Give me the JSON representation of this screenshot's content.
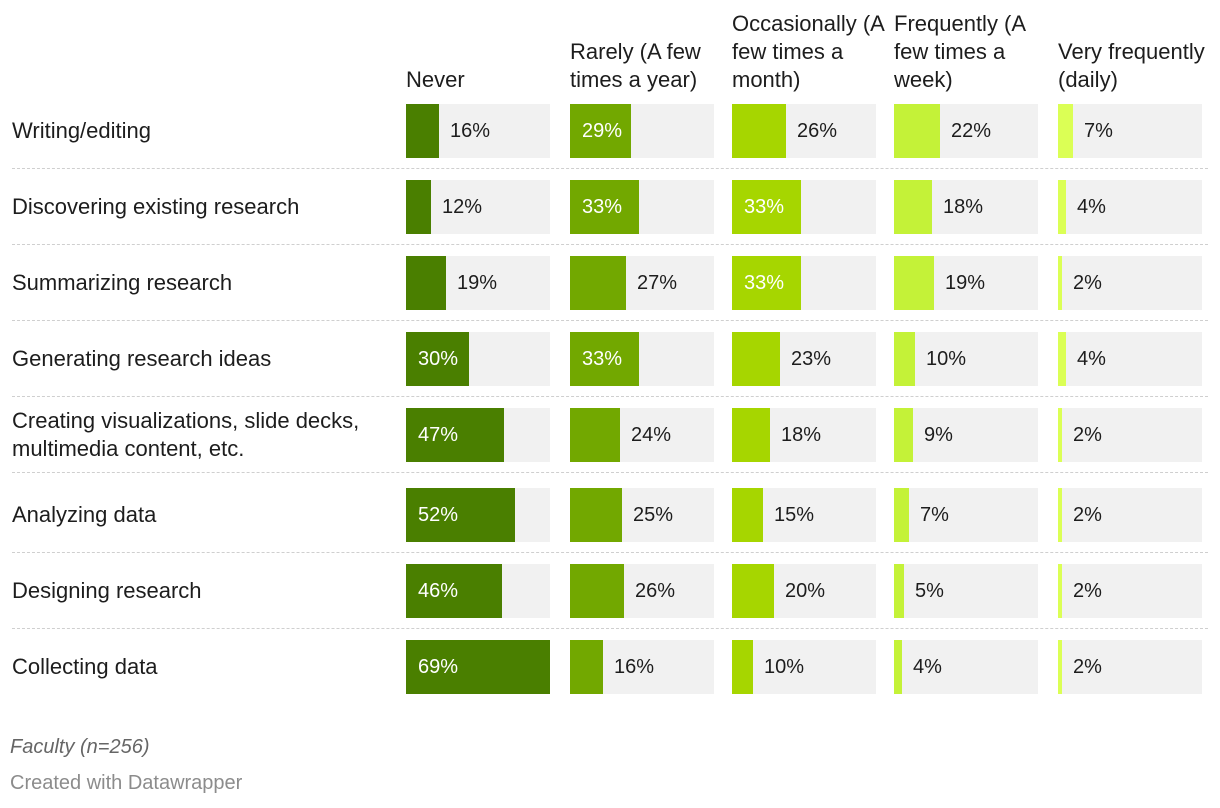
{
  "chart_data": {
    "type": "bar",
    "columns": [
      {
        "name": "Never",
        "color": "#4a7f00"
      },
      {
        "name": "Rarely (A few times a year)",
        "color": "#72a800"
      },
      {
        "name": "Occasionally (A few times a month)",
        "color": "#a6d600"
      },
      {
        "name": "Frequently (A few times a week)",
        "color": "#c4f238"
      },
      {
        "name": "Very frequently (daily)",
        "color": "#dbff55"
      }
    ],
    "rows": [
      {
        "label": "Writing/editing",
        "values": [
          16,
          29,
          26,
          22,
          7
        ],
        "display": [
          "16%",
          "29%",
          "26%",
          "22%",
          "7%"
        ]
      },
      {
        "label": "Discovering existing research",
        "values": [
          12,
          33,
          33,
          18,
          4
        ],
        "display": [
          "12%",
          "33%",
          "33%",
          "18%",
          "4%"
        ]
      },
      {
        "label": "Summarizing research",
        "values": [
          19,
          27,
          33,
          19,
          2
        ],
        "display": [
          "19%",
          "27%",
          "33%",
          "19%",
          "2%"
        ]
      },
      {
        "label": "Generating research ideas",
        "values": [
          30,
          33,
          23,
          10,
          4
        ],
        "display": [
          "30%",
          "33%",
          "23%",
          "10%",
          "4%"
        ]
      },
      {
        "label": "Creating visualizations, slide decks, multimedia content, etc.",
        "values": [
          47,
          24,
          18,
          9,
          2
        ],
        "display": [
          "47%",
          "24%",
          "18%",
          "9%",
          "2%"
        ]
      },
      {
        "label": "Analyzing data",
        "values": [
          52,
          25,
          15,
          7,
          2
        ],
        "display": [
          "52%",
          "25%",
          "15%",
          "7%",
          "2%"
        ]
      },
      {
        "label": "Designing research",
        "values": [
          46,
          26,
          20,
          5,
          2
        ],
        "display": [
          "46%",
          "26%",
          "20%",
          "5%",
          "2%"
        ]
      },
      {
        "label": "Collecting data",
        "values": [
          69,
          16,
          10,
          4,
          2
        ],
        "display": [
          "69%",
          "16%",
          "10%",
          "4%",
          "2%"
        ]
      }
    ],
    "scale_max": 69
  },
  "notes": {
    "sample": "Faculty (n=256)",
    "credit": "Created with Datawrapper"
  }
}
